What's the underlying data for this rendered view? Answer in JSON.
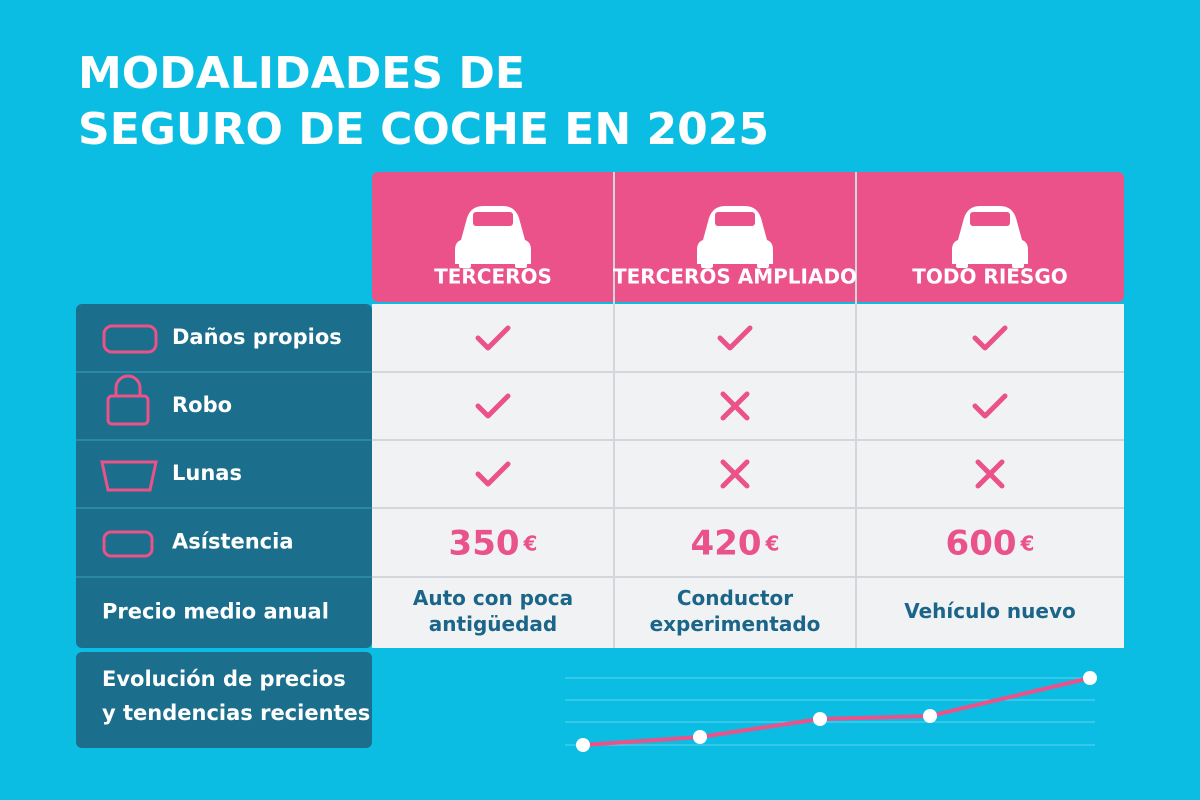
{
  "header": {
    "title": [
      "MODALIDADES DE",
      "SEGURO DE COCHE EN 2025"
    ]
  },
  "table": {
    "columns": [
      "TERCEROS",
      "TERCEROS AMPLIADO",
      "TODO RIESGO"
    ],
    "rows": [
      {
        "label": "Daños propios",
        "cells": [
          true,
          true,
          true
        ]
      },
      {
        "label": "Robo",
        "cells": [
          true,
          false,
          true
        ]
      },
      {
        "label": "Lunas",
        "cells": [
          true,
          false,
          false
        ]
      },
      {
        "label": "Asístencia",
        "cells": [
          {
            "value": 350,
            "unit": "€"
          },
          {
            "value": 420,
            "unit": "€"
          },
          {
            "value": 600,
            "unit": "€"
          }
        ]
      },
      {
        "label": "Precio medio anual",
        "cells": [
          [
            "Auto con poca",
            "antigüedad"
          ],
          [
            "Conductor",
            "experimentado"
          ],
          [
            "Vehículo nuevo"
          ]
        ]
      }
    ]
  },
  "trend": {
    "title": [
      "Evolución de precios",
      "y tendencias recientes"
    ],
    "values": [
      0,
      8,
      26,
      29,
      67
    ]
  }
}
